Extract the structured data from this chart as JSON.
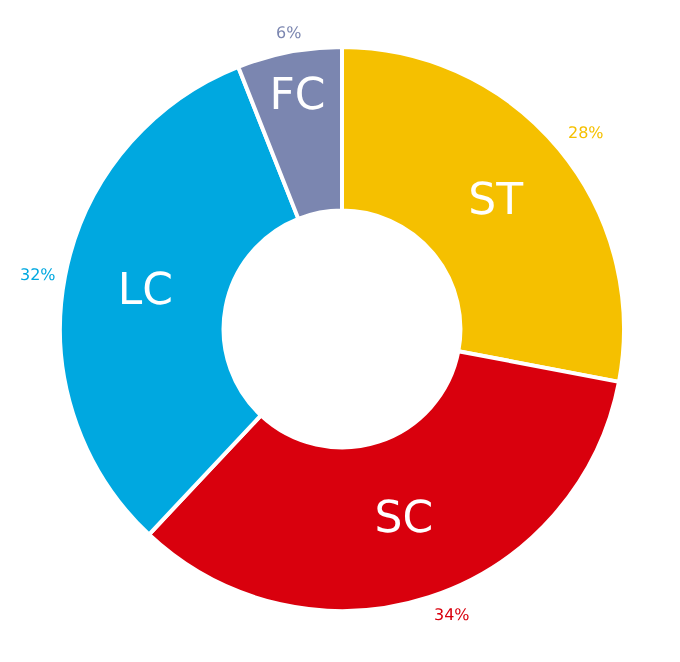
{
  "chart_data": {
    "type": "donut",
    "categories": [
      "ST",
      "SC",
      "LC",
      "FC"
    ],
    "values": [
      28,
      34,
      32,
      6
    ],
    "value_labels": [
      "28%",
      "34%",
      "32%",
      "6%"
    ],
    "colors": [
      "#f5c000",
      "#d9000d",
      "#00a8e0",
      "#7b86b0"
    ],
    "legend": false
  }
}
